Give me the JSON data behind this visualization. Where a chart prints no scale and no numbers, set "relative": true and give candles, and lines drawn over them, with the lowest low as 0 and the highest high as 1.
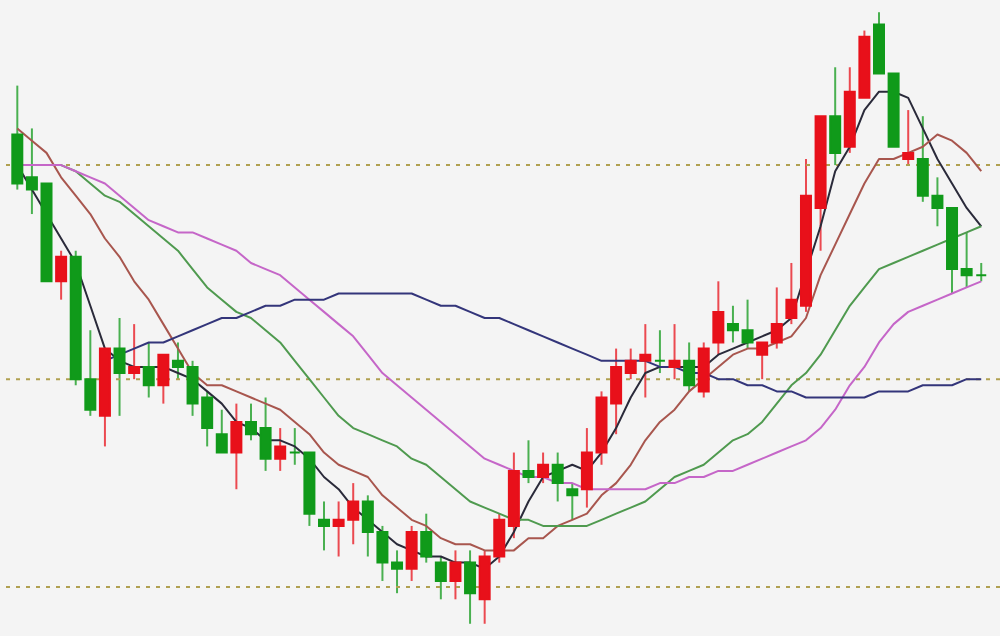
{
  "chart_data": {
    "type": "candlestick",
    "relative": true,
    "categories": [
      null,
      null,
      null,
      null,
      null,
      null,
      null,
      null,
      null,
      null,
      null,
      null,
      null,
      null,
      null,
      null,
      null,
      null,
      null,
      null,
      null,
      null,
      null,
      null,
      null,
      null,
      null,
      null,
      null,
      null,
      null,
      null,
      null,
      null,
      null,
      null,
      null,
      null,
      null,
      null,
      null,
      null,
      null,
      null,
      null,
      null,
      null,
      null,
      null,
      null,
      null,
      null,
      null,
      null,
      null,
      null,
      null,
      null,
      null,
      null,
      null,
      null,
      null,
      null,
      null,
      null,
      null
    ],
    "ohlc": [
      [
        0.8,
        0.88,
        0.71,
        0.72
      ],
      [
        0.73,
        0.81,
        0.67,
        0.71
      ],
      [
        0.72,
        0.72,
        0.56,
        0.56
      ],
      [
        0.56,
        0.61,
        0.53,
        0.6
      ],
      [
        0.6,
        0.61,
        0.39,
        0.4
      ],
      [
        0.4,
        0.48,
        0.34,
        0.35
      ],
      [
        0.34,
        0.45,
        0.29,
        0.45
      ],
      [
        0.45,
        0.5,
        0.34,
        0.41
      ],
      [
        0.41,
        0.49,
        0.4,
        0.42
      ],
      [
        0.42,
        0.46,
        0.37,
        0.39
      ],
      [
        0.39,
        0.44,
        0.36,
        0.44
      ],
      [
        0.43,
        0.46,
        0.4,
        0.42
      ],
      [
        0.42,
        0.43,
        0.34,
        0.36
      ],
      [
        0.37,
        0.38,
        0.29,
        0.32
      ],
      [
        0.31,
        0.35,
        0.28,
        0.28
      ],
      [
        0.28,
        0.36,
        0.22,
        0.33
      ],
      [
        0.33,
        0.36,
        0.3,
        0.31
      ],
      [
        0.32,
        0.37,
        0.25,
        0.27
      ],
      [
        0.27,
        0.32,
        0.25,
        0.29
      ],
      [
        0.28,
        0.32,
        0.26,
        0.28
      ],
      [
        0.28,
        0.28,
        0.16,
        0.18
      ],
      [
        0.17,
        0.2,
        0.12,
        0.16
      ],
      [
        0.16,
        0.2,
        0.11,
        0.17
      ],
      [
        0.17,
        0.23,
        0.13,
        0.2
      ],
      [
        0.2,
        0.21,
        0.11,
        0.15
      ],
      [
        0.15,
        0.16,
        0.07,
        0.1
      ],
      [
        0.1,
        0.12,
        0.05,
        0.09
      ],
      [
        0.09,
        0.16,
        0.07,
        0.15
      ],
      [
        0.15,
        0.18,
        0.1,
        0.11
      ],
      [
        0.1,
        0.11,
        0.04,
        0.07
      ],
      [
        0.07,
        0.12,
        0.04,
        0.1
      ],
      [
        0.1,
        0.12,
        0.0,
        0.05
      ],
      [
        0.04,
        0.12,
        0.0,
        0.11
      ],
      [
        0.11,
        0.18,
        0.1,
        0.17
      ],
      [
        0.16,
        0.28,
        0.14,
        0.25
      ],
      [
        0.25,
        0.3,
        0.23,
        0.24
      ],
      [
        0.24,
        0.28,
        0.23,
        0.26
      ],
      [
        0.26,
        0.28,
        0.2,
        0.23
      ],
      [
        0.22,
        0.23,
        0.17,
        0.21
      ],
      [
        0.22,
        0.32,
        0.19,
        0.28
      ],
      [
        0.28,
        0.38,
        0.26,
        0.37
      ],
      [
        0.36,
        0.45,
        0.31,
        0.42
      ],
      [
        0.41,
        0.45,
        0.4,
        0.43
      ],
      [
        0.43,
        0.49,
        0.37,
        0.44
      ],
      [
        0.43,
        0.48,
        0.41,
        0.43
      ],
      [
        0.42,
        0.49,
        0.4,
        0.43
      ],
      [
        0.43,
        0.46,
        0.38,
        0.39
      ],
      [
        0.38,
        0.46,
        0.37,
        0.45
      ],
      [
        0.46,
        0.56,
        0.44,
        0.51
      ],
      [
        0.49,
        0.52,
        0.46,
        0.48
      ],
      [
        0.48,
        0.53,
        0.45,
        0.46
      ],
      [
        0.44,
        0.46,
        0.4,
        0.46
      ],
      [
        0.46,
        0.55,
        0.45,
        0.49
      ],
      [
        0.5,
        0.59,
        0.49,
        0.53
      ],
      [
        0.52,
        0.76,
        0.51,
        0.7
      ],
      [
        0.68,
        0.83,
        0.61,
        0.83
      ],
      [
        0.83,
        0.91,
        0.75,
        0.77
      ],
      [
        0.78,
        0.91,
        0.77,
        0.87
      ],
      [
        0.86,
        0.97,
        0.86,
        0.96
      ],
      [
        0.98,
        1.0,
        0.9,
        0.9
      ],
      [
        0.9,
        0.9,
        0.78,
        0.78
      ],
      [
        0.76,
        0.84,
        0.75,
        0.77
      ],
      [
        0.76,
        0.83,
        0.69,
        0.7
      ],
      [
        0.7,
        0.73,
        0.65,
        0.68
      ],
      [
        0.68,
        0.68,
        0.54,
        0.58
      ],
      [
        0.58,
        0.64,
        0.55,
        0.57
      ],
      [
        0.57,
        0.59,
        0.56,
        0.57
      ]
    ],
    "colors": [
      "#109a1a",
      "#109a1a",
      "#109a1a",
      "#e8101a",
      "#109a1a",
      "#109a1a",
      "#e8101a",
      "#109a1a",
      "#e8101a",
      "#109a1a",
      "#e8101a",
      "#109a1a",
      "#109a1a",
      "#109a1a",
      "#109a1a",
      "#e8101a",
      "#109a1a",
      "#109a1a",
      "#e8101a",
      "#109a1a",
      "#109a1a",
      "#109a1a",
      "#e8101a",
      "#e8101a",
      "#109a1a",
      "#109a1a",
      "#109a1a",
      "#e8101a",
      "#109a1a",
      "#109a1a",
      "#e8101a",
      "#109a1a",
      "#e8101a",
      "#e8101a",
      "#e8101a",
      "#109a1a",
      "#e8101a",
      "#109a1a",
      "#109a1a",
      "#e8101a",
      "#e8101a",
      "#e8101a",
      "#e8101a",
      "#e8101a",
      "#109a1a",
      "#e8101a",
      "#109a1a",
      "#e8101a",
      "#e8101a",
      "#109a1a",
      "#109a1a",
      "#e8101a",
      "#e8101a",
      "#e8101a",
      "#e8101a",
      "#e8101a",
      "#109a1a",
      "#e8101a",
      "#e8101a",
      "#109a1a",
      "#109a1a",
      "#e8101a",
      "#109a1a",
      "#109a1a",
      "#109a1a",
      "#109a1a",
      "#109a1a"
    ],
    "series": [
      {
        "type": "line",
        "color": "#2a2a3a",
        "values": [
          0.75,
          0.71,
          null,
          0.63,
          0.59,
          0.52,
          0.45,
          0.43,
          0.42,
          0.42,
          0.42,
          0.41,
          0.4,
          0.38,
          0.36,
          0.33,
          0.32,
          0.3,
          0.3,
          0.29,
          0.27,
          0.24,
          0.22,
          0.19,
          0.17,
          0.15,
          0.13,
          0.12,
          0.11,
          0.11,
          0.1,
          0.1,
          0.09,
          0.11,
          0.15,
          0.2,
          0.24,
          0.25,
          0.26,
          0.25,
          0.28,
          0.32,
          0.37,
          0.41,
          0.42,
          0.42,
          0.42,
          0.42,
          0.44,
          0.45,
          0.46,
          0.47,
          0.48,
          0.5,
          null,
          0.65,
          0.74,
          0.78,
          0.84,
          0.87,
          0.87,
          0.86,
          0.81,
          0.76,
          0.72,
          0.68,
          0.65
        ]
      },
      {
        "type": "line",
        "color": "#a8564e",
        "values": [
          0.81,
          0.79,
          0.77,
          0.73,
          0.7,
          0.67,
          0.63,
          0.6,
          0.56,
          0.53,
          0.49,
          0.45,
          0.41,
          0.39,
          0.39,
          0.38,
          0.37,
          0.36,
          0.35,
          0.33,
          0.31,
          0.28,
          0.26,
          0.25,
          0.24,
          0.21,
          0.19,
          0.17,
          0.16,
          0.14,
          0.13,
          0.13,
          0.12,
          0.12,
          0.12,
          0.14,
          0.14,
          0.16,
          0.17,
          0.18,
          0.21,
          0.23,
          0.26,
          0.3,
          0.33,
          0.35,
          0.38,
          0.4,
          0.42,
          0.44,
          0.45,
          0.45,
          0.46,
          0.47,
          0.5,
          0.57,
          0.62,
          0.67,
          0.72,
          0.76,
          0.76,
          0.77,
          0.78,
          0.8,
          0.79,
          0.77,
          0.74
        ]
      },
      {
        "type": "line",
        "color": "#4f9a4f",
        "values": [
          0.75,
          0.75,
          0.75,
          0.75,
          0.74,
          0.72,
          0.7,
          0.69,
          0.67,
          0.65,
          0.63,
          0.61,
          0.58,
          0.55,
          0.53,
          0.51,
          0.5,
          0.48,
          0.46,
          0.43,
          0.4,
          0.37,
          0.34,
          0.32,
          0.31,
          0.3,
          0.29,
          0.27,
          0.26,
          0.24,
          0.22,
          0.2,
          0.19,
          0.18,
          0.17,
          0.17,
          0.16,
          0.16,
          0.16,
          0.16,
          0.17,
          0.18,
          0.19,
          0.2,
          0.22,
          0.24,
          0.25,
          0.26,
          0.28,
          0.3,
          0.31,
          0.33,
          0.36,
          0.39,
          0.41,
          0.44,
          0.48,
          0.52,
          0.55,
          0.58,
          0.59,
          0.6,
          0.61,
          0.62,
          0.63,
          0.64,
          0.65
        ]
      },
      {
        "type": "line",
        "color": "#c566c8",
        "values": [
          0.75,
          0.75,
          0.75,
          0.75,
          0.74,
          0.73,
          0.72,
          0.7,
          0.68,
          0.66,
          0.65,
          0.64,
          0.64,
          0.63,
          0.62,
          0.61,
          0.59,
          0.58,
          0.57,
          0.55,
          0.53,
          0.51,
          0.49,
          0.47,
          0.44,
          0.41,
          0.39,
          0.37,
          0.35,
          0.33,
          0.31,
          0.29,
          0.27,
          0.26,
          0.25,
          0.24,
          0.24,
          0.23,
          0.23,
          0.22,
          0.22,
          0.22,
          0.22,
          0.22,
          0.23,
          0.23,
          0.24,
          0.24,
          0.25,
          0.25,
          0.26,
          0.27,
          0.28,
          0.29,
          0.3,
          0.32,
          0.35,
          0.39,
          0.42,
          0.46,
          0.49,
          0.51,
          0.52,
          0.53,
          0.54,
          0.55,
          0.56
        ]
      },
      {
        "type": "line",
        "color": "#33357a",
        "values": [
          null,
          null,
          null,
          null,
          null,
          null,
          0.43,
          0.44,
          0.45,
          0.46,
          0.46,
          0.47,
          0.48,
          0.49,
          0.5,
          0.5,
          0.51,
          0.52,
          0.52,
          0.53,
          0.53,
          0.53,
          0.54,
          0.54,
          0.54,
          0.54,
          0.54,
          0.54,
          0.53,
          0.52,
          0.52,
          0.51,
          0.5,
          0.5,
          0.49,
          0.48,
          0.47,
          0.46,
          0.45,
          0.44,
          0.43,
          0.43,
          0.43,
          0.43,
          0.42,
          0.42,
          0.41,
          0.41,
          0.4,
          0.4,
          0.39,
          0.39,
          0.38,
          0.38,
          0.37,
          0.37,
          0.37,
          0.37,
          0.37,
          0.38,
          0.38,
          0.38,
          0.39,
          0.39,
          0.39,
          0.4,
          0.4
        ]
      }
    ],
    "ref_lines": [
      {
        "axis": "y",
        "value": 0.75,
        "color": "#b0a050",
        "line_style": "dotted"
      },
      {
        "axis": "y",
        "value": 0.4,
        "color": "#b0a050",
        "line_style": "dotted"
      },
      {
        "axis": "y",
        "value": 0.06,
        "color": "#b0a050",
        "line_style": "dotted"
      }
    ]
  }
}
